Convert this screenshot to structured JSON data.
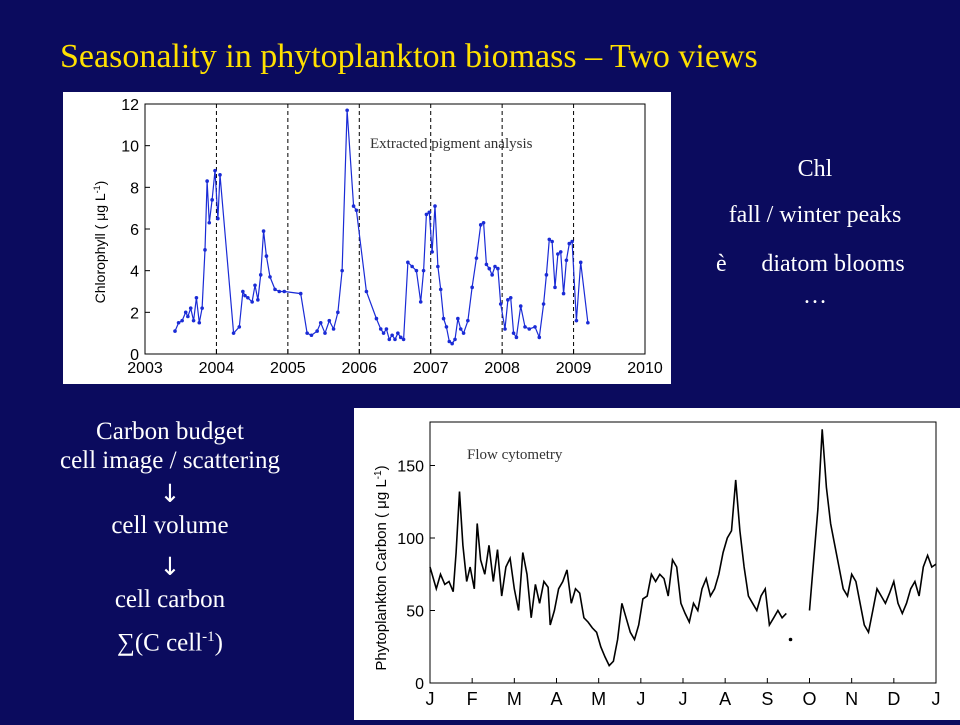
{
  "slide": {
    "title": "Seasonality in phytoplankton biomass – Two views",
    "right_text": {
      "line1": "Chl",
      "line2": "fall / winter peaks",
      "arrow_glyph": "è",
      "line3": "diatom blooms",
      "line4": "…"
    },
    "left_text": {
      "line1": "Carbon budget",
      "line2": "cell image / scattering",
      "arrow1": "↓",
      "line3": "cell volume",
      "arrow2": "↓",
      "line4": "cell carbon",
      "formula": "∑(C cell",
      "formula_sup": "-1",
      "formula_end": ")"
    }
  },
  "chart_data": [
    {
      "type": "line",
      "annotation": "Extracted pigment analysis",
      "ylabel": "Chlorophyll ( μg L",
      "ylabel_sup": "-1",
      "ylabel_end": ")",
      "xlim": [
        2003,
        2010
      ],
      "ylim": [
        0,
        12
      ],
      "xticks": [
        2003,
        2004,
        2005,
        2006,
        2007,
        2008,
        2009,
        2010
      ],
      "yticks": [
        0,
        2,
        4,
        6,
        8,
        10,
        12
      ],
      "vlines": [
        2004,
        2005,
        2006,
        2007,
        2008,
        2009
      ],
      "color": "#1a2bd6",
      "x": [
        2003.42,
        2003.47,
        2003.52,
        2003.57,
        2003.6,
        2003.64,
        2003.68,
        2003.72,
        2003.76,
        2003.8,
        2003.84,
        2003.87,
        2003.9,
        2003.94,
        2003.98,
        2004.02,
        2004.05,
        2004.24,
        2004.32,
        2004.37,
        2004.4,
        2004.44,
        2004.5,
        2004.54,
        2004.58,
        2004.62,
        2004.66,
        2004.7,
        2004.75,
        2004.82,
        2004.88,
        2004.95,
        2005.18,
        2005.27,
        2005.33,
        2005.41,
        2005.46,
        2005.52,
        2005.58,
        2005.64,
        2005.7,
        2005.76,
        2005.83,
        2005.92,
        2005.96,
        2006.1,
        2006.24,
        2006.3,
        2006.34,
        2006.38,
        2006.42,
        2006.46,
        2006.5,
        2006.54,
        2006.58,
        2006.62,
        2006.68,
        2006.74,
        2006.8,
        2006.86,
        2006.9,
        2006.94,
        2006.98,
        2007.02,
        2007.06,
        2007.1,
        2007.14,
        2007.18,
        2007.22,
        2007.26,
        2007.3,
        2007.34,
        2007.38,
        2007.42,
        2007.46,
        2007.52,
        2007.58,
        2007.64,
        2007.7,
        2007.74,
        2007.78,
        2007.82,
        2007.86,
        2007.9,
        2007.94,
        2007.98,
        2008.04,
        2008.08,
        2008.12,
        2008.16,
        2008.2,
        2008.26,
        2008.32,
        2008.38,
        2008.46,
        2008.52,
        2008.58,
        2008.62,
        2008.66,
        2008.7,
        2008.74,
        2008.78,
        2008.82,
        2008.86,
        2008.9,
        2008.94,
        2008.98,
        2009.04,
        2009.1,
        2009.2
      ],
      "y": [
        1.1,
        1.5,
        1.6,
        2.0,
        1.8,
        2.2,
        1.6,
        2.7,
        1.5,
        2.2,
        5.0,
        8.3,
        6.3,
        7.4,
        8.8,
        6.5,
        8.6,
        1.0,
        1.3,
        3.0,
        2.8,
        2.7,
        2.5,
        3.3,
        2.6,
        3.8,
        5.9,
        4.7,
        3.7,
        3.1,
        3.0,
        3.0,
        2.9,
        1.0,
        0.9,
        1.1,
        1.5,
        1.0,
        1.6,
        1.2,
        2.0,
        4.0,
        11.7,
        7.1,
        6.9,
        3.0,
        1.7,
        1.2,
        1.0,
        1.2,
        0.7,
        0.9,
        0.7,
        1.0,
        0.8,
        0.7,
        4.4,
        4.2,
        4.0,
        2.5,
        4.0,
        6.7,
        6.8,
        4.9,
        7.1,
        4.2,
        3.1,
        1.7,
        1.3,
        0.6,
        0.5,
        0.7,
        1.7,
        1.2,
        1.0,
        1.6,
        3.2,
        4.6,
        6.2,
        6.3,
        4.3,
        4.1,
        3.8,
        4.2,
        4.1,
        2.4,
        1.2,
        2.6,
        2.7,
        1.0,
        0.8,
        2.3,
        1.3,
        1.2,
        1.3,
        0.8,
        2.4,
        3.8,
        5.5,
        5.4,
        3.2,
        4.8,
        4.9,
        2.9,
        4.5,
        5.3,
        5.4,
        1.6,
        4.4,
        1.5
      ]
    },
    {
      "type": "line",
      "annotation": "Flow cytometry",
      "ylabel": "Phytoplankton Carbon ( μg L",
      "ylabel_sup": "-1",
      "ylabel_end": ")",
      "xlim": [
        0,
        12
      ],
      "ylim": [
        0,
        180
      ],
      "categories": [
        "J",
        "F",
        "M",
        "A",
        "M",
        "J",
        "J",
        "A",
        "S",
        "O",
        "N",
        "D",
        "J"
      ],
      "yticks": [
        0,
        50,
        100,
        150
      ],
      "color": "#000000",
      "segments": [
        {
          "x": [
            0.0,
            0.15,
            0.25,
            0.35,
            0.45,
            0.55,
            0.62,
            0.7,
            0.78,
            0.87,
            0.95,
            1.05,
            1.12,
            1.2,
            1.3,
            1.4,
            1.5,
            1.6,
            1.7,
            1.8,
            1.9,
            2.0,
            2.1,
            2.2,
            2.3,
            2.4,
            2.5,
            2.6,
            2.7,
            2.8,
            2.85,
            2.95,
            3.05,
            3.15,
            3.25,
            3.35,
            3.45,
            3.55,
            3.65,
            3.75,
            3.85,
            3.95,
            4.05,
            4.15,
            4.25,
            4.35,
            4.45,
            4.55,
            4.65,
            4.75,
            4.85,
            4.95,
            5.05,
            5.15,
            5.25,
            5.35,
            5.45,
            5.55,
            5.65,
            5.75,
            5.85,
            5.95,
            6.05,
            6.15,
            6.25,
            6.35,
            6.45,
            6.55,
            6.65,
            6.75,
            6.85,
            6.95,
            7.05,
            7.15,
            7.25,
            7.35,
            7.45,
            7.55,
            7.65,
            7.75,
            7.85,
            7.95,
            8.05,
            8.15,
            8.25,
            8.35,
            8.45
          ],
          "y": [
            80,
            65,
            75,
            68,
            70,
            63,
            90,
            132,
            95,
            70,
            80,
            65,
            110,
            85,
            75,
            95,
            70,
            92,
            60,
            80,
            86,
            65,
            50,
            90,
            75,
            45,
            68,
            55,
            70,
            66,
            40,
            50,
            65,
            70,
            78,
            55,
            65,
            62,
            45,
            42,
            38,
            35,
            25,
            18,
            12,
            15,
            30,
            55,
            45,
            35,
            30,
            40,
            58,
            60,
            75,
            70,
            75,
            72,
            60,
            85,
            80,
            55,
            48,
            42,
            55,
            50,
            65,
            72,
            60,
            65,
            75,
            90,
            100,
            105,
            140,
            105,
            80,
            60,
            55,
            50,
            60,
            65,
            40,
            45,
            50,
            45,
            48
          ]
        },
        {
          "x": [
            9.0,
            9.1,
            9.2,
            9.3,
            9.4,
            9.5,
            9.6,
            9.7,
            9.8,
            9.9,
            10.0,
            10.1,
            10.2,
            10.3,
            10.4,
            10.5,
            10.6,
            10.7,
            10.8,
            10.9,
            11.0,
            11.1,
            11.2,
            11.3,
            11.4,
            11.5,
            11.6,
            11.7,
            11.8,
            11.9,
            12.0
          ],
          "y": [
            50,
            85,
            120,
            175,
            135,
            110,
            95,
            80,
            65,
            60,
            75,
            70,
            55,
            40,
            35,
            50,
            65,
            60,
            55,
            62,
            70,
            55,
            48,
            55,
            65,
            70,
            60,
            80,
            88,
            80,
            82
          ]
        }
      ],
      "isolated_point": {
        "x": 8.55,
        "y": 30
      }
    }
  ]
}
